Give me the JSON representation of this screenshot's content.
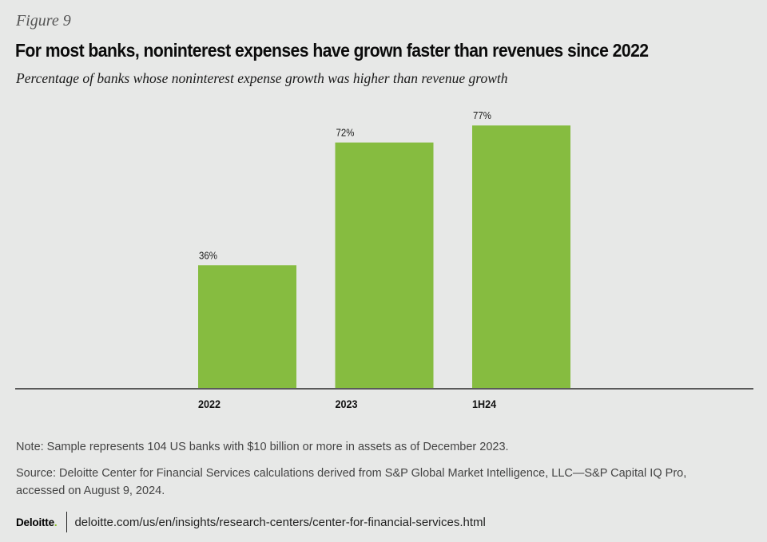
{
  "figure_label": "Figure 9",
  "title": "For most banks, noninterest expenses have grown faster than revenues since 2022",
  "subtitle": "Percentage of banks whose noninterest expense growth was higher than revenue growth",
  "note": "Note: Sample represents 104 US banks with $10 billion or more in assets as of December 2023.",
  "source": "Source: Deloitte Center for Financial Services calculations derived from S&P Global Market Intelligence, LLC—S&P Capital IQ Pro, accessed on August 9, 2024.",
  "footer": {
    "brand": "Deloitte",
    "brand_dot": ".",
    "link": "deloitte.com/us/en/insights/research-centers/center-for-financial-services.html"
  },
  "colors": {
    "bar": "#86bc40",
    "axis": "#5a5a5a",
    "background": "#e7e8e7",
    "brand_green": "#86bc25"
  },
  "chart_data": {
    "type": "bar",
    "title": "For most banks, noninterest expenses have grown faster than revenues since 2022",
    "subtitle": "Percentage of banks whose noninterest expense growth was higher than revenue growth",
    "categories": [
      "2022",
      "2023",
      "1H24"
    ],
    "values": [
      36,
      72,
      77
    ],
    "data_labels": [
      "36%",
      "72%",
      "77%"
    ],
    "unit": "%",
    "xlabel": "",
    "ylabel": "",
    "ylim": [
      0,
      80
    ],
    "grid": false,
    "legend": "none"
  }
}
